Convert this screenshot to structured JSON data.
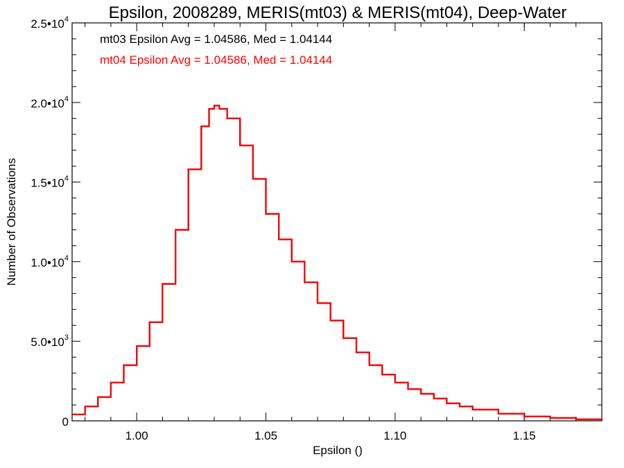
{
  "chart_data": {
    "type": "histogram-step",
    "title": "Epsilon, 2008289, MERIS(mt03) & MERIS(mt04), Deep-Water",
    "xlabel": "Epsilon ()",
    "ylabel": "Number of Observations",
    "xlim": [
      0.975,
      1.18
    ],
    "ylim": [
      0,
      25000
    ],
    "x_ticks": [
      {
        "value": 1.0,
        "label": "1.00"
      },
      {
        "value": 1.05,
        "label": "1.05"
      },
      {
        "value": 1.1,
        "label": "1.10"
      },
      {
        "value": 1.15,
        "label": "1.15"
      }
    ],
    "y_ticks": [
      {
        "value": 0,
        "mantissa": "0",
        "exp": ""
      },
      {
        "value": 5000,
        "mantissa": "5.0•10",
        "exp": "3"
      },
      {
        "value": 10000,
        "mantissa": "1.0•10",
        "exp": "4"
      },
      {
        "value": 15000,
        "mantissa": "1.5•10",
        "exp": "4"
      },
      {
        "value": 20000,
        "mantissa": "2.0•10",
        "exp": "4"
      },
      {
        "value": 25000,
        "mantissa": "2.5•10",
        "exp": "4"
      }
    ],
    "annotations": [
      {
        "text": "mt03 Epsilon Avg = 1.04586, Med = 1.04144",
        "color": "#000000"
      },
      {
        "text": "mt04 Epsilon Avg = 1.04586, Med = 1.04144",
        "color": "#ff0000"
      }
    ],
    "series": [
      {
        "color": "#000000",
        "x": [
          0.975,
          0.98,
          0.985,
          0.99,
          0.995,
          1.0,
          1.005,
          1.01,
          1.015,
          1.02,
          1.025,
          1.028,
          1.03,
          1.032,
          1.035,
          1.04,
          1.045,
          1.05,
          1.055,
          1.06,
          1.065,
          1.07,
          1.075,
          1.08,
          1.085,
          1.09,
          1.095,
          1.1,
          1.105,
          1.11,
          1.115,
          1.12,
          1.125,
          1.13,
          1.14,
          1.15,
          1.16,
          1.17,
          1.18
        ],
        "y": [
          400,
          900,
          1500,
          2400,
          3500,
          4700,
          6200,
          8600,
          12000,
          15800,
          18500,
          19600,
          19800,
          19600,
          19000,
          17300,
          15200,
          13000,
          11400,
          10000,
          8700,
          7400,
          6300,
          5200,
          4300,
          3500,
          2900,
          2400,
          2000,
          1700,
          1400,
          1100,
          900,
          700,
          450,
          280,
          180,
          90,
          30
        ]
      },
      {
        "color": "#ff0000",
        "x": [
          0.975,
          0.98,
          0.985,
          0.99,
          0.995,
          1.0,
          1.005,
          1.01,
          1.015,
          1.02,
          1.025,
          1.028,
          1.03,
          1.032,
          1.035,
          1.04,
          1.045,
          1.05,
          1.055,
          1.06,
          1.065,
          1.07,
          1.075,
          1.08,
          1.085,
          1.09,
          1.095,
          1.1,
          1.105,
          1.11,
          1.115,
          1.12,
          1.125,
          1.13,
          1.14,
          1.15,
          1.16,
          1.17,
          1.18
        ],
        "y": [
          400,
          900,
          1500,
          2400,
          3500,
          4700,
          6200,
          8600,
          12000,
          15800,
          18500,
          19600,
          19800,
          19600,
          19000,
          17300,
          15200,
          13000,
          11400,
          10000,
          8700,
          7400,
          6300,
          5200,
          4300,
          3500,
          2900,
          2400,
          2000,
          1700,
          1400,
          1100,
          900,
          700,
          450,
          280,
          180,
          90,
          30
        ]
      }
    ]
  }
}
